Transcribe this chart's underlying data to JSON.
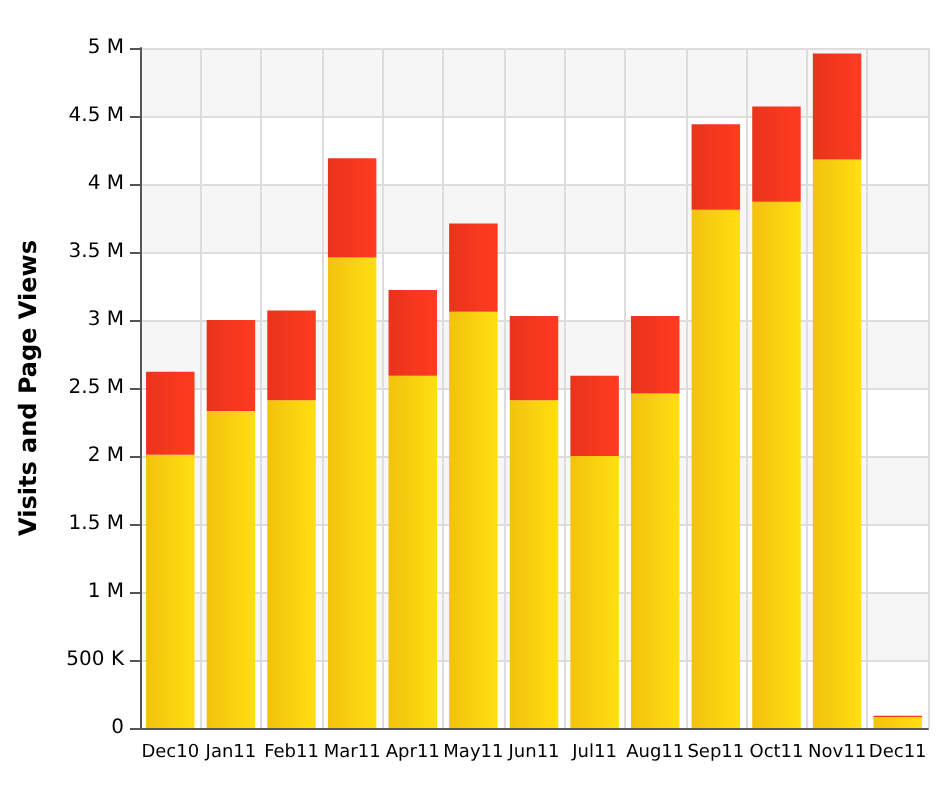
{
  "chart_data": {
    "type": "bar",
    "stacked": true,
    "ylabel": "Visits and Page Views",
    "categories": [
      "Dec10",
      "Jan11",
      "Feb11",
      "Mar11",
      "Apr11",
      "May11",
      "Jun11",
      "Jul11",
      "Aug11",
      "Sep11",
      "Oct11",
      "Nov11",
      "Dec11"
    ],
    "series": [
      {
        "color": "#f2c20f",
        "values": [
          2010000,
          2330000,
          2410000,
          3460000,
          2590000,
          3060000,
          2410000,
          2000000,
          2460000,
          3810000,
          3870000,
          4180000,
          80000
        ]
      },
      {
        "color": "#e8341c",
        "values": [
          610000,
          670000,
          660000,
          730000,
          630000,
          650000,
          620000,
          590000,
          570000,
          630000,
          700000,
          780000,
          10000
        ]
      }
    ],
    "ylim": [
      0,
      5000000
    ],
    "yticks": [
      0,
      {
        "value": 500000,
        "label": "500 K"
      },
      {
        "value": 1000000,
        "label": "1 M"
      },
      {
        "value": 1500000,
        "label": "1.5 M"
      },
      {
        "value": 2000000,
        "label": "2 M"
      },
      {
        "value": 2500000,
        "label": "2.5 M"
      },
      {
        "value": 3000000,
        "label": "3 M"
      },
      {
        "value": 3500000,
        "label": "3.5 M"
      },
      {
        "value": 4000000,
        "label": "4 M"
      },
      {
        "value": 4500000,
        "label": "4.5 M"
      },
      {
        "value": 5000000,
        "label": "5 M"
      }
    ],
    "grid": true
  }
}
